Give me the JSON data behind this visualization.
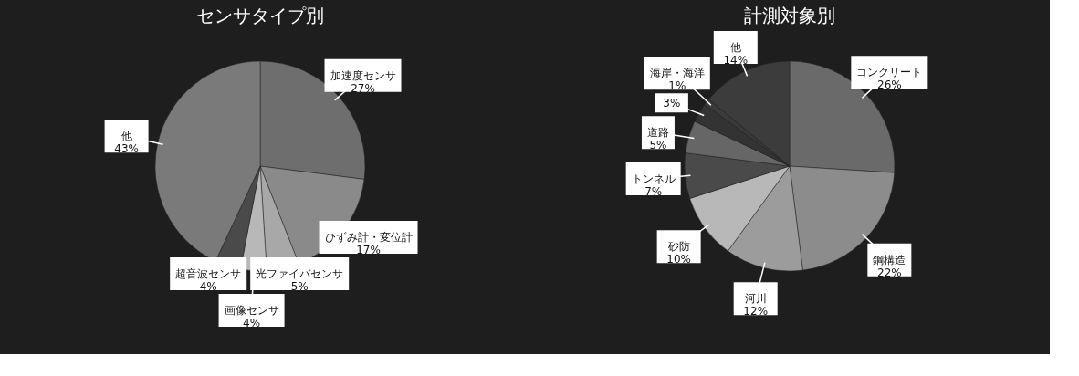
{
  "chart_data": [
    {
      "type": "pie",
      "title": "センサタイプ別",
      "categories": [
        "加速度センサ",
        "ひずみ計・変位計",
        "光ファイバセンサ",
        "画像センサ",
        "超音波センサ",
        "他"
      ],
      "values": [
        27,
        17,
        5,
        4,
        4,
        43
      ],
      "value_labels": [
        "27%",
        "17%",
        "5%",
        "4%",
        "4%",
        "43%"
      ],
      "colors": [
        "#6e6e6e",
        "#8a8a8a",
        "#a8a8a8",
        "#b8b8b8",
        "#4a4a4a",
        "#7a7a7a"
      ]
    },
    {
      "type": "pie",
      "title": "計測対象別",
      "categories": [
        "コンクリート",
        "鋼構造",
        "河川",
        "砂防",
        "トンネル",
        "道路",
        null,
        "海岸・海洋",
        "他"
      ],
      "values": [
        26,
        22,
        12,
        10,
        7,
        5,
        3,
        1,
        14
      ],
      "value_labels": [
        "26%",
        "22%",
        "12%",
        "10%",
        "7%",
        "5%",
        "3%",
        "1%",
        "14%"
      ],
      "colors": [
        "#6a6a6a",
        "#8c8c8c",
        "#9c9c9c",
        "#b8b8b8",
        "#4a4a4a",
        "#666666",
        "#333333",
        "#3a3a3a",
        "#3c3c3c"
      ]
    }
  ]
}
